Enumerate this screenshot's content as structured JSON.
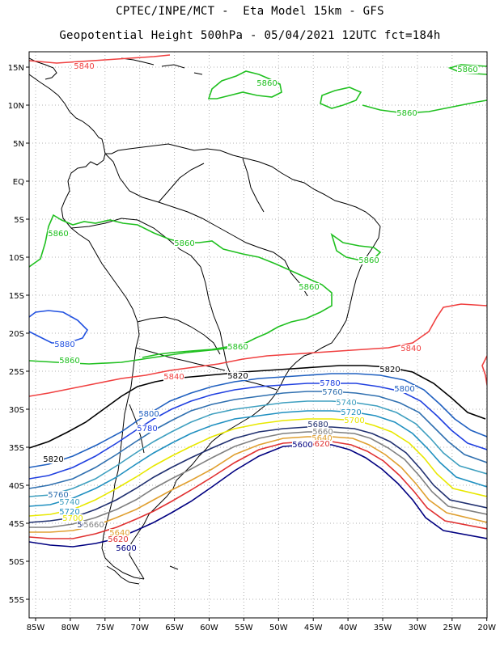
{
  "title_line1": "CPTEC/INPE/MCT -  Eta Model 15km - GFS",
  "title_line2": "Geopotential Height 500hPa - 05/04/2021 12UTC fct=184h",
  "lat_labels": [
    "15N",
    "10N",
    "5N",
    "EQ",
    "5S",
    "10S",
    "15S",
    "20S",
    "25S",
    "30S",
    "35S",
    "40S",
    "45S",
    "50S",
    "55S"
  ],
  "lon_labels": [
    "85W",
    "80W",
    "75W",
    "70W",
    "65W",
    "60W",
    "55W",
    "50W",
    "45W",
    "40W",
    "35W",
    "30W",
    "25W",
    "20W"
  ],
  "contour_colors": {
    "5600": "#000080",
    "5620": "#e03030",
    "5640": "#e0a030",
    "5660": "#808080",
    "5680": "#203070",
    "5700": "#e8e800",
    "5720": "#2090c0",
    "5740": "#40a0c0",
    "5760": "#3070b0",
    "5780": "#2040e0",
    "5800": "#2060c0",
    "5820": "#000000",
    "5840": "#f04040",
    "5860": "#20c020",
    "5880": "#2050e0"
  },
  "contour_labels": [
    {
      "text": "5840",
      "color": "#f04040"
    },
    {
      "text": "5860",
      "color": "#20c020"
    },
    {
      "text": "5860",
      "color": "#20c020"
    },
    {
      "text": "5860",
      "color": "#20c020"
    },
    {
      "text": "5860",
      "color": "#20c020"
    },
    {
      "text": "5860",
      "color": "#20c020"
    },
    {
      "text": "5860",
      "color": "#20c020"
    },
    {
      "text": "5860",
      "color": "#20c020"
    },
    {
      "text": "5860",
      "color": "#20c020"
    },
    {
      "text": "5860",
      "color": "#20c020"
    },
    {
      "text": "5880",
      "color": "#2050e0"
    },
    {
      "text": "5840",
      "color": "#f04040"
    },
    {
      "text": "5840",
      "color": "#f04040"
    },
    {
      "text": "5820",
      "color": "#000000"
    },
    {
      "text": "5820",
      "color": "#000000"
    },
    {
      "text": "5820",
      "color": "#000000"
    },
    {
      "text": "5780",
      "color": "#2040e0"
    },
    {
      "text": "5760",
      "color": "#3070b0"
    },
    {
      "text": "5740",
      "color": "#40a0c0"
    },
    {
      "text": "5720",
      "color": "#2090c0"
    },
    {
      "text": "5700",
      "color": "#e8e800"
    },
    {
      "text": "5680",
      "color": "#203070"
    },
    {
      "text": "5660",
      "color": "#808080"
    },
    {
      "text": "5640",
      "color": "#e0a030"
    },
    {
      "text": "5620",
      "color": "#e03030"
    },
    {
      "text": "5600",
      "color": "#000080"
    },
    {
      "text": "5800",
      "color": "#2060c0"
    },
    {
      "text": "5800",
      "color": "#2060c0"
    },
    {
      "text": "5780",
      "color": "#2040e0"
    },
    {
      "text": "5760",
      "color": "#3070b0"
    },
    {
      "text": "5740",
      "color": "#40a0c0"
    },
    {
      "text": "5720",
      "color": "#2090c0"
    },
    {
      "text": "5700",
      "color": "#e8e800"
    },
    {
      "text": "5680",
      "color": "#203070"
    },
    {
      "text": "5660",
      "color": "#808080"
    },
    {
      "text": "5640",
      "color": "#e0a030"
    },
    {
      "text": "5620",
      "color": "#e03030"
    },
    {
      "text": "5600",
      "color": "#000080"
    }
  ]
}
